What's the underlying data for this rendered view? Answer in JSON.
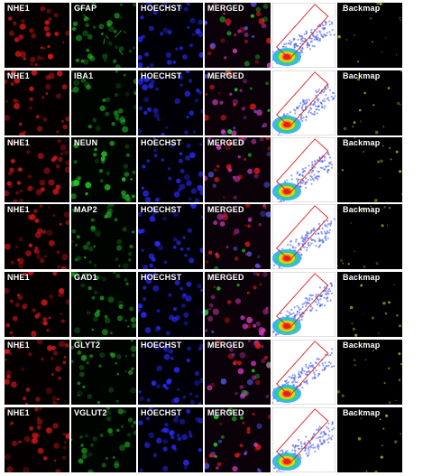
{
  "columns": [
    "marker1",
    "marker2",
    "nuclear",
    "merged",
    "scatter",
    "backmap"
  ],
  "colors": {
    "nhe1": "#e01818",
    "green": "#26d62a",
    "blue": "#2a2aff",
    "gate": "#e02020"
  },
  "rows": [
    {
      "labels": [
        "NHE1",
        "GFAP",
        "HOECHST",
        "MERGED",
        "",
        "Backmap"
      ]
    },
    {
      "labels": [
        "NHE1",
        "IBA1",
        "HOECHST",
        "MERGED",
        "",
        "Backmap"
      ]
    },
    {
      "labels": [
        "NHE1",
        "NEUN",
        "HOECHST",
        "MERGED",
        "",
        "Backmap"
      ]
    },
    {
      "labels": [
        "NHE1",
        "MAP2",
        "HOECHST",
        "MERGED",
        "",
        "Backmap"
      ]
    },
    {
      "labels": [
        "NHE1",
        "GAD1",
        "HOECHST",
        "MERGED",
        "",
        "Backmap"
      ]
    },
    {
      "labels": [
        "NHE1",
        "GLYT2",
        "HOECHST",
        "MERGED",
        "",
        "Backmap"
      ]
    },
    {
      "labels": [
        "NHE1",
        "VGLUT2",
        "HOECHST",
        "MERGED",
        "",
        "Backmap"
      ]
    }
  ]
}
